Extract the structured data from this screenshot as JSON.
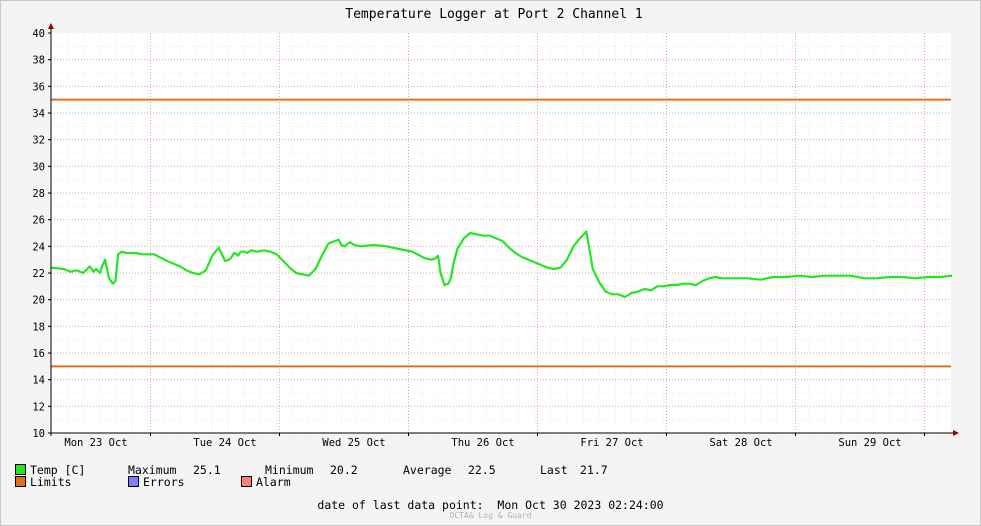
{
  "chart_data": {
    "type": "line",
    "title": "Temperature Logger at Port 2 Channel 1",
    "ylim": [
      10,
      40
    ],
    "yticks": [
      10,
      12,
      14,
      16,
      18,
      20,
      22,
      24,
      26,
      28,
      30,
      32,
      34,
      36,
      38,
      40
    ],
    "xticks": [
      "Mon 23 Oct",
      "Tue 24 Oct",
      "Wed 25 Oct",
      "Thu 26 Oct",
      "Fri 27 Oct",
      "Sat 28 Oct",
      "Sun 29 Oct"
    ],
    "grid": true,
    "limits": {
      "upper": 35,
      "lower": 15,
      "color": "#e0701a"
    },
    "series": [
      {
        "name": "Temp [C]",
        "color": "#22e622",
        "x": [
          0.0,
          0.1,
          0.15,
          0.2,
          0.25,
          0.3,
          0.33,
          0.35,
          0.38,
          0.4,
          0.42,
          0.45,
          0.48,
          0.5,
          0.52,
          0.55,
          0.58,
          0.6,
          0.63,
          0.66,
          0.7,
          0.8,
          0.9,
          1.0,
          1.05,
          1.1,
          1.15,
          1.2,
          1.25,
          1.3,
          1.35,
          1.38,
          1.4,
          1.42,
          1.44,
          1.45,
          1.47,
          1.5,
          1.52,
          1.55,
          1.6,
          1.65,
          1.7,
          1.75,
          1.8,
          1.85,
          1.9,
          2.0,
          2.05,
          2.1,
          2.15,
          2.2,
          2.23,
          2.25,
          2.28,
          2.3,
          2.32,
          2.35,
          2.4,
          2.5,
          2.6,
          2.7,
          2.8,
          2.9,
          2.95,
          2.98,
          3.0,
          3.02,
          3.05,
          3.08,
          3.1,
          3.12,
          3.15,
          3.2,
          3.25,
          3.3,
          3.35,
          3.4,
          3.45,
          3.5,
          3.55,
          3.6,
          3.65,
          3.7,
          3.75,
          3.8,
          3.85,
          3.9,
          3.95,
          4.0,
          4.05,
          4.1,
          4.15,
          4.2,
          4.25,
          4.3,
          4.35,
          4.4,
          4.45,
          4.5,
          4.55,
          4.6,
          4.65,
          4.7,
          4.75,
          4.8,
          4.85,
          4.9,
          4.95,
          5.0,
          5.05,
          5.1,
          5.15,
          5.2,
          5.3,
          5.4,
          5.5,
          5.6,
          5.7,
          5.8,
          5.9,
          6.0,
          6.1,
          6.2,
          6.3,
          6.4,
          6.5,
          6.6,
          6.7,
          6.8,
          6.9,
          7.0,
          7.1
        ],
        "values": [
          22.4,
          22.3,
          22.1,
          22.2,
          22.0,
          22.5,
          22.1,
          22.3,
          22.0,
          22.6,
          23.0,
          21.6,
          21.2,
          21.4,
          23.4,
          23.6,
          23.5,
          23.5,
          23.5,
          23.5,
          23.4,
          23.4,
          22.9,
          22.5,
          22.2,
          22.0,
          21.9,
          22.2,
          23.3,
          23.9,
          22.9,
          23.0,
          23.2,
          23.5,
          23.4,
          23.3,
          23.6,
          23.6,
          23.5,
          23.7,
          23.6,
          23.7,
          23.6,
          23.4,
          22.9,
          22.4,
          22.0,
          21.8,
          22.3,
          23.3,
          24.2,
          24.4,
          24.5,
          24.1,
          24.0,
          24.2,
          24.3,
          24.1,
          24.0,
          24.1,
          24.0,
          23.8,
          23.6,
          23.1,
          23.0,
          23.1,
          23.3,
          22.0,
          21.1,
          21.2,
          21.6,
          22.7,
          23.8,
          24.6,
          25.0,
          24.9,
          24.8,
          24.8,
          24.6,
          24.4,
          23.9,
          23.5,
          23.2,
          23.0,
          22.8,
          22.6,
          22.4,
          22.3,
          22.4,
          23.0,
          24.0,
          24.6,
          25.1,
          22.3,
          21.3,
          20.6,
          20.4,
          20.4,
          20.2,
          20.5,
          20.6,
          20.8,
          20.7,
          21.0,
          21.0,
          21.1,
          21.1,
          21.2,
          21.2,
          21.1,
          21.4,
          21.6,
          21.7,
          21.6,
          21.6,
          21.6,
          21.5,
          21.7,
          21.7,
          21.8,
          21.7,
          21.8,
          21.8,
          21.8,
          21.6,
          21.6,
          21.7,
          21.7,
          21.6,
          21.7,
          21.7,
          21.8,
          21.7
        ]
      }
    ]
  },
  "legend": {
    "temp_label": "Temp [C]",
    "stats": [
      {
        "label": "Maximum",
        "value": "25.1"
      },
      {
        "label": "Minimum",
        "value": "20.2"
      },
      {
        "label": "Average",
        "value": "22.5"
      },
      {
        "label": "Last",
        "value": "21.7"
      }
    ],
    "limits_label": "Limits",
    "errors_label": "Errors",
    "alarm_label": "Alarm",
    "colors": {
      "temp": "#22e622",
      "limits": "#e0701a",
      "errors": "#7f7fff",
      "alarm": "#ff7f7f"
    }
  },
  "footer": {
    "last_point_label": "date of last data point:",
    "last_point_value": "Mon Oct 30 2023 02:24:00",
    "credit": "OCTA& Log & Guard"
  }
}
